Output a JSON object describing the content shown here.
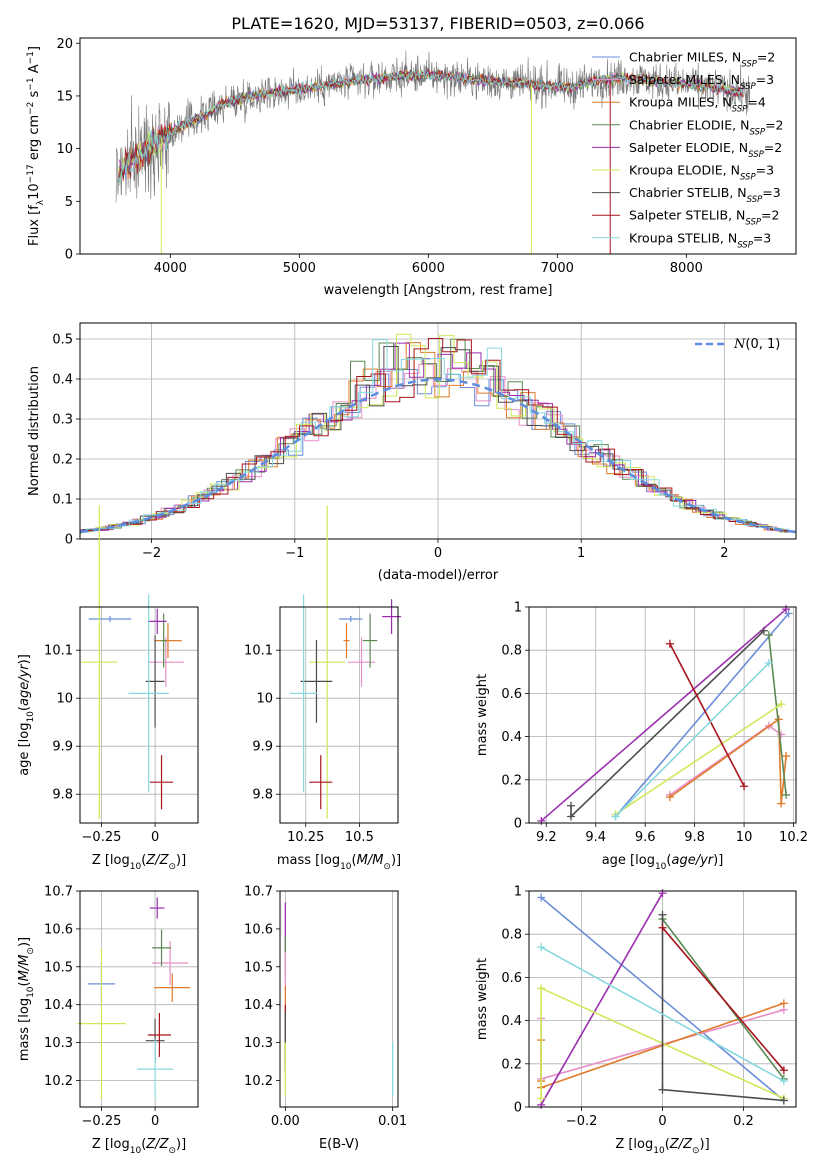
{
  "figure_title": "PLATE=1620, MJD=53137, FIBERID=0503, z=0.066",
  "colors": {
    "Chabrier MILES": "#6b8fd9",
    "Salpeter MILES": "#e88fc7",
    "Kroupa MILES": "#e07b2c",
    "Chabrier ELODIE": "#5a8a52",
    "Salpeter ELODIE": "#9b2fae",
    "Kroupa ELODIE": "#cfe85a",
    "Chabrier STELIB": "#4d4d4d",
    "Salpeter STELIB": "#a8141c",
    "Kroupa STELIB": "#86d8de",
    "normal": "#5b8ee0"
  },
  "chart_data": [
    {
      "id": "spectrum",
      "type": "line",
      "xlabel": "wavelength [Angstrom, rest frame]",
      "ylabel": "Flux [f_λ10^-17 erg cm^-2 s^-1 A^-1]",
      "xlim": [
        3300,
        8850
      ],
      "ylim": [
        0,
        20.5
      ],
      "xticks": [
        4000,
        5000,
        6000,
        7000,
        8000
      ],
      "yticks": [
        0,
        5,
        10,
        15,
        20
      ],
      "continuum": {
        "x": [
          3580,
          3650,
          3750,
          3850,
          3950,
          4000,
          4100,
          4200,
          4300,
          4400,
          4500,
          4700,
          4900,
          5100,
          5300,
          5500,
          5700,
          5900,
          6100,
          6300,
          6500,
          6700,
          6900,
          7100,
          7300,
          7500,
          7700,
          7900,
          8100,
          8300,
          8500
        ],
        "y": [
          7.5,
          8.3,
          9.3,
          10.3,
          11.2,
          11.5,
          12.2,
          12.8,
          13.4,
          14.2,
          14.6,
          15.2,
          15.5,
          15.8,
          16.2,
          16.5,
          16.8,
          17.0,
          16.9,
          16.6,
          16.4,
          16.2,
          16.0,
          15.8,
          16.5,
          16.7,
          16.5,
          16.2,
          16.0,
          15.6,
          15.2
        ]
      },
      "legend_position": "upper right",
      "legend": [
        {
          "name": "Chabrier MILES",
          "label": "Chabrier MILES, N",
          "sub": "SSP",
          "tail": "=2"
        },
        {
          "name": "Salpeter MILES",
          "label": "Salpeter MILES, N",
          "sub": "SSP",
          "tail": "=3"
        },
        {
          "name": "Kroupa MILES",
          "label": "Kroupa MILES, N",
          "sub": "SSP",
          "tail": "=4"
        },
        {
          "name": "Chabrier ELODIE",
          "label": "Chabrier ELODIE, N",
          "sub": "SSP",
          "tail": "=2"
        },
        {
          "name": "Salpeter ELODIE",
          "label": "Salpeter ELODIE, N",
          "sub": "SSP",
          "tail": "=2"
        },
        {
          "name": "Kroupa ELODIE",
          "label": "Kroupa ELODIE, N",
          "sub": "SSP",
          "tail": "=3"
        },
        {
          "name": "Chabrier STELIB",
          "label": "Chabrier STELIB, N",
          "sub": "SSP",
          "tail": "=3"
        },
        {
          "name": "Salpeter STELIB",
          "label": "Salpeter STELIB, N",
          "sub": "SSP",
          "tail": "=2"
        },
        {
          "name": "Kroupa STELIB",
          "label": "Kroupa STELIB, N",
          "sub": "SSP",
          "tail": "=3"
        }
      ]
    },
    {
      "id": "residuals",
      "type": "bar",
      "xlabel": "(data-model)/error",
      "ylabel": "Normed distribution",
      "xlim": [
        -2.5,
        2.5
      ],
      "ylim": [
        0,
        0.54
      ],
      "xticks": [
        -2,
        -1,
        0,
        1,
        2
      ],
      "yticks": [
        0.0,
        0.1,
        0.2,
        0.3,
        0.4,
        0.5
      ],
      "bin_width": 0.1,
      "histogram_series": [
        {
          "model": "Chabrier MILES",
          "peak": 0.4
        },
        {
          "model": "Salpeter MILES",
          "peak": 0.43
        },
        {
          "model": "Kroupa MILES",
          "peak": 0.45
        },
        {
          "model": "Chabrier ELODIE",
          "peak": 0.52
        },
        {
          "model": "Salpeter ELODIE",
          "peak": 0.48
        },
        {
          "model": "Kroupa ELODIE",
          "peak": 0.5
        },
        {
          "model": "Chabrier STELIB",
          "peak": 0.46
        },
        {
          "model": "Salpeter STELIB",
          "peak": 0.49
        },
        {
          "model": "Kroupa STELIB",
          "peak": 0.5
        }
      ],
      "legend_label": "N(0,1)"
    },
    {
      "id": "age_vs_Z",
      "type": "scatter",
      "xlabel": "Z [log10(Z/Z☉)]",
      "ylabel": "age [log10(age/yr)]",
      "xlim": [
        -0.35,
        0.2
      ],
      "ylim": [
        9.74,
        10.19
      ],
      "xticks": [
        -0.25,
        0.0
      ],
      "yticks": [
        9.8,
        9.9,
        10.0,
        10.1
      ],
      "points": [
        {
          "model": "Chabrier MILES",
          "x": -0.21,
          "y": 10.165,
          "xerr": 0.085
        },
        {
          "model": "Salpeter MILES",
          "x": 0.05,
          "y": 10.075,
          "xerr": 0.07,
          "yerr": 0.045
        },
        {
          "model": "Kroupa MILES",
          "x": 0.06,
          "y": 10.12,
          "xerr": 0.05,
          "yerr": 0.03
        },
        {
          "model": "Chabrier ELODIE",
          "x": 0.04,
          "y": 10.12,
          "yerr": 0.05
        },
        {
          "model": "Salpeter ELODIE",
          "x": 0.01,
          "y": 10.16,
          "xerr": 0.03,
          "yerr": 0.02
        },
        {
          "model": "Kroupa ELODIE",
          "x": -0.26,
          "y": 10.075,
          "xerr": 0.07,
          "yerr": 0.32
        },
        {
          "model": "Chabrier STELIB",
          "x": 0.0,
          "y": 10.035,
          "xerr": 0.03,
          "yerr": 0.09
        },
        {
          "model": "Salpeter STELIB",
          "x": 0.03,
          "y": 9.825,
          "xerr": 0.04,
          "yerr": 0.05
        },
        {
          "model": "Kroupa STELIB",
          "x": -0.03,
          "y": 10.01,
          "xerr": 0.08,
          "yerr": 0.2
        }
      ]
    },
    {
      "id": "age_vs_mass",
      "type": "scatter",
      "xlabel": "mass [log10(M/M☉)]",
      "ylabel": "",
      "xlim": [
        10.13,
        10.68
      ],
      "ylim": [
        9.74,
        10.19
      ],
      "xticks": [
        10.25,
        10.5
      ],
      "yticks": [
        9.8,
        9.9,
        10.0,
        10.1
      ],
      "points": [
        {
          "model": "Chabrier MILES",
          "x": 10.46,
          "y": 10.165,
          "xerr": 0.04
        },
        {
          "model": "Salpeter MILES",
          "x": 10.51,
          "y": 10.075,
          "xerr": 0.05,
          "yerr": 0.045
        },
        {
          "model": "Kroupa MILES",
          "x": 10.44,
          "y": 10.12,
          "yerr": 0.03
        },
        {
          "model": "Chabrier ELODIE",
          "x": 10.55,
          "y": 10.12,
          "xerr": 0.02,
          "yerr": 0.05
        },
        {
          "model": "Salpeter ELODIE",
          "x": 10.65,
          "y": 10.17,
          "xerr": 0.03,
          "yerr": 0.03
        },
        {
          "model": "Kroupa ELODIE",
          "x": 10.35,
          "y": 10.075,
          "xerr": 0.07,
          "yerr": 0.32
        },
        {
          "model": "Chabrier STELIB",
          "x": 10.3,
          "y": 10.035,
          "xerr": 0.06,
          "yerr": 0.08
        },
        {
          "model": "Salpeter STELIB",
          "x": 10.32,
          "y": 9.825,
          "xerr": 0.04,
          "yerr": 0.05
        },
        {
          "model": "Kroupa STELIB",
          "x": 10.24,
          "y": 10.01,
          "xerr": 0.05,
          "yerr": 0.2
        }
      ]
    },
    {
      "id": "weight_vs_age",
      "type": "line",
      "xlabel": "age [log10(age/yr)]",
      "ylabel": "mass weight",
      "xlim": [
        9.13,
        10.21
      ],
      "ylim": [
        0,
        1.0
      ],
      "xticks": [
        9.2,
        9.4,
        9.6,
        9.8,
        10.0,
        10.2
      ],
      "yticks": [
        0.0,
        0.2,
        0.4,
        0.6,
        0.8,
        1.0
      ],
      "series": [
        {
          "model": "Chabrier MILES",
          "x": [
            9.48,
            10.18
          ],
          "y": [
            0.03,
            0.97
          ]
        },
        {
          "model": "Salpeter MILES",
          "x": [
            9.7,
            10.1,
            10.15
          ],
          "y": [
            0.13,
            0.45,
            0.41
          ]
        },
        {
          "model": "Kroupa MILES",
          "x": [
            9.7,
            10.14,
            10.15,
            10.17
          ],
          "y": [
            0.12,
            0.48,
            0.09,
            0.31
          ]
        },
        {
          "model": "Chabrier ELODIE",
          "x": [
            10.1,
            10.17
          ],
          "y": [
            0.87,
            0.13
          ]
        },
        {
          "model": "Salpeter ELODIE",
          "x": [
            9.18,
            10.17
          ],
          "y": [
            0.01,
            0.99
          ]
        },
        {
          "model": "Kroupa ELODIE",
          "x": [
            9.48,
            10.15
          ],
          "y": [
            0.04,
            0.55
          ]
        },
        {
          "model": "Chabrier STELIB",
          "x": [
            9.3,
            9.3,
            10.08
          ],
          "y": [
            0.08,
            0.03,
            0.89
          ]
        },
        {
          "model": "Salpeter STELIB",
          "x": [
            9.7,
            10.0
          ],
          "y": [
            0.83,
            0.17
          ]
        },
        {
          "model": "Kroupa STELIB",
          "x": [
            9.48,
            10.1
          ],
          "y": [
            0.03,
            0.74
          ]
        }
      ]
    },
    {
      "id": "mass_vs_Z",
      "type": "scatter",
      "xlabel": "Z [log10(Z/Z☉)]",
      "ylabel": "mass [log10(M/M☉)]",
      "xlim": [
        -0.35,
        0.2
      ],
      "ylim": [
        10.13,
        10.7
      ],
      "xticks": [
        -0.25,
        0.0
      ],
      "yticks": [
        10.2,
        10.3,
        10.4,
        10.5,
        10.6,
        10.7
      ],
      "points": [
        {
          "model": "Chabrier MILES",
          "x": -0.25,
          "y": 10.455,
          "xerr": 0.05,
          "yerr": 0.05
        },
        {
          "model": "Salpeter MILES",
          "x": 0.07,
          "y": 10.51,
          "xerr": 0.07,
          "yerr": 0.05
        },
        {
          "model": "Kroupa MILES",
          "x": 0.08,
          "y": 10.445,
          "xerr": 0.07,
          "yerr": 0.03
        },
        {
          "model": "Chabrier ELODIE",
          "x": 0.03,
          "y": 10.55,
          "xerr": 0.03,
          "yerr": 0.04
        },
        {
          "model": "Salpeter ELODIE",
          "x": 0.01,
          "y": 10.655,
          "xerr": 0.02,
          "yerr": 0.02
        },
        {
          "model": "Kroupa ELODIE",
          "x": -0.25,
          "y": 10.35,
          "xerr": 0.1,
          "yerr": 0.19
        },
        {
          "model": "Chabrier STELIB",
          "x": 0.0,
          "y": 10.305,
          "xerr": 0.03,
          "yerr": 0.05
        },
        {
          "model": "Salpeter STELIB",
          "x": 0.02,
          "y": 10.32,
          "xerr": 0.04,
          "yerr": 0.05
        },
        {
          "model": "Kroupa STELIB",
          "x": 0.0,
          "y": 10.23,
          "xerr": 0.07,
          "yerr": 0.07
        }
      ]
    },
    {
      "id": "mass_vs_ebv",
      "type": "scatter",
      "xlabel": "E(B-V)",
      "ylabel": "",
      "xlim": [
        -0.0005,
        0.0105
      ],
      "ylim": [
        10.13,
        10.7
      ],
      "xticks": [
        0.0,
        0.01
      ],
      "ytick_values": [
        10.2,
        10.3,
        10.4,
        10.5,
        10.6,
        10.7
      ],
      "points": [
        {
          "model": "Salpeter ELODIE",
          "x": 0.0,
          "y": 10.6,
          "yerr": 0.07
        },
        {
          "model": "Chabrier ELODIE",
          "x": 0.0,
          "y": 10.53,
          "yerr": 0.05
        },
        {
          "model": "Salpeter MILES",
          "x": 0.0,
          "y": 10.49,
          "yerr": 0.05
        },
        {
          "model": "Kroupa MILES",
          "x": 0.0,
          "y": 10.42,
          "yerr": 0.03
        },
        {
          "model": "Salpeter STELIB",
          "x": 0.0,
          "y": 10.32,
          "yerr": 0.08
        },
        {
          "model": "Chabrier STELIB",
          "x": 0.0,
          "y": 10.3,
          "yerr": 0.08
        },
        {
          "model": "Kroupa ELODIE",
          "x": 0.0,
          "y": 10.23,
          "yerr": 0.07
        },
        {
          "model": "Kroupa STELIB",
          "x": 0.01,
          "y": 10.23,
          "yerr": 0.07
        }
      ]
    },
    {
      "id": "weight_vs_Z",
      "type": "line",
      "xlabel": "Z [log10(Z/Z☉)]",
      "ylabel": "mass weight",
      "xlim": [
        -0.33,
        0.33
      ],
      "ylim": [
        0,
        1.0
      ],
      "xticks": [
        -0.2,
        0.0,
        0.2
      ],
      "yticks": [
        0.0,
        0.2,
        0.4,
        0.6,
        0.8,
        1.0
      ],
      "series": [
        {
          "model": "Chabrier MILES",
          "x": [
            -0.3,
            0.3
          ],
          "y": [
            0.97,
            0.03
          ]
        },
        {
          "model": "Salpeter MILES",
          "x": [
            -0.3,
            -0.3,
            0.3
          ],
          "y": [
            0.41,
            0.13,
            0.45
          ]
        },
        {
          "model": "Kroupa MILES",
          "x": [
            -0.3,
            -0.3,
            -0.3,
            0.3
          ],
          "y": [
            0.31,
            0.12,
            0.09,
            0.48
          ]
        },
        {
          "model": "Chabrier ELODIE",
          "x": [
            0.0,
            0.3
          ],
          "y": [
            0.87,
            0.13
          ]
        },
        {
          "model": "Salpeter ELODIE",
          "x": [
            -0.3,
            0.0
          ],
          "y": [
            0.01,
            0.99
          ]
        },
        {
          "model": "Kroupa ELODIE",
          "x": [
            -0.3,
            -0.3,
            0.3
          ],
          "y": [
            0.04,
            0.55,
            0.04
          ]
        },
        {
          "model": "Chabrier STELIB",
          "x": [
            0.0,
            0.0,
            0.3
          ],
          "y": [
            0.89,
            0.08,
            0.03
          ]
        },
        {
          "model": "Salpeter STELIB",
          "x": [
            0.0,
            0.3
          ],
          "y": [
            0.83,
            0.17
          ]
        },
        {
          "model": "Kroupa STELIB",
          "x": [
            -0.3,
            0.3
          ],
          "y": [
            0.74,
            0.12
          ]
        }
      ]
    }
  ]
}
